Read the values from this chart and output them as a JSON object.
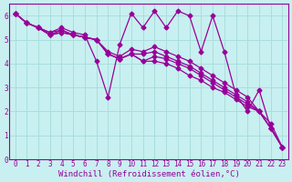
{
  "xlabel": "Windchill (Refroidissement éolien,°C)",
  "bg_color": "#c8f0f0",
  "grid_color": "#aadddd",
  "line_color": "#990099",
  "xlim": [
    -0.5,
    23.5
  ],
  "ylim": [
    0,
    6.5
  ],
  "xticks": [
    0,
    1,
    2,
    3,
    4,
    5,
    6,
    7,
    8,
    9,
    10,
    11,
    12,
    13,
    14,
    15,
    16,
    17,
    18,
    19,
    20,
    21,
    22,
    23
  ],
  "yticks": [
    0,
    1,
    2,
    3,
    4,
    5,
    6
  ],
  "series": [
    [
      6.1,
      5.7,
      5.5,
      5.2,
      5.3,
      5.2,
      5.1,
      5.0,
      4.4,
      4.2,
      4.4,
      4.1,
      4.1,
      4.0,
      3.8,
      3.5,
      3.3,
      3.0,
      2.8,
      2.5,
      2.2,
      2.0,
      1.3,
      0.5
    ],
    [
      6.1,
      5.7,
      5.5,
      5.2,
      5.3,
      5.2,
      5.1,
      5.0,
      4.4,
      4.2,
      4.4,
      4.1,
      4.3,
      4.2,
      4.0,
      3.8,
      3.5,
      3.2,
      2.9,
      2.6,
      2.3,
      2.0,
      1.3,
      0.5
    ],
    [
      6.1,
      5.7,
      5.5,
      5.2,
      5.4,
      5.2,
      5.1,
      5.0,
      4.4,
      4.2,
      4.4,
      4.4,
      4.5,
      4.3,
      4.1,
      3.9,
      3.6,
      3.3,
      3.0,
      2.7,
      2.4,
      2.0,
      1.3,
      0.5
    ],
    [
      6.1,
      5.7,
      5.5,
      5.3,
      5.4,
      5.2,
      5.1,
      5.0,
      4.5,
      4.3,
      4.6,
      4.5,
      4.7,
      4.5,
      4.3,
      4.1,
      3.8,
      3.5,
      3.2,
      2.9,
      2.6,
      2.0,
      1.5,
      0.5
    ],
    [
      6.1,
      5.7,
      5.5,
      5.3,
      5.5,
      5.3,
      5.2,
      4.1,
      2.6,
      4.8,
      6.1,
      5.5,
      6.2,
      5.5,
      6.2,
      6.0,
      4.5,
      6.0,
      4.5,
      2.7,
      2.0,
      2.9,
      1.3,
      0.5
    ]
  ],
  "marker": "D",
  "markersize": 2.5,
  "linewidth": 0.9,
  "tick_fontsize": 5.5,
  "label_fontsize": 6.5
}
